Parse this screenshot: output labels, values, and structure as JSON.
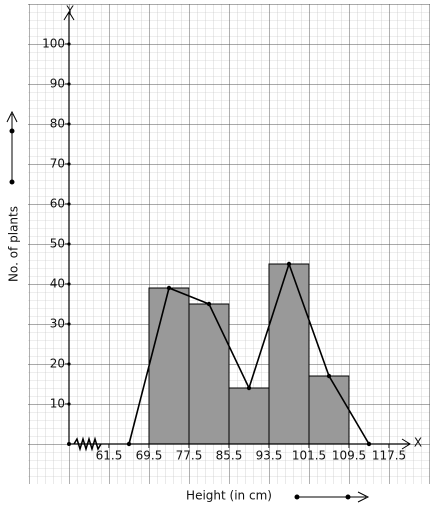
{
  "chart_data": {
    "type": "histogram",
    "xlabel": "Height (in cm)",
    "ylabel": "No. of plants",
    "x_axis_name": "X",
    "y_axis_name": "Y",
    "bins": [
      69.5,
      77.5,
      85.5,
      93.5,
      101.5,
      109.5
    ],
    "values": [
      39,
      35,
      14,
      45,
      17
    ],
    "color": "#999999",
    "polygon": {
      "x": [
        65.5,
        73.5,
        81.5,
        89.5,
        97.5,
        105.5,
        113.5
      ],
      "values": [
        0,
        39,
        35,
        14,
        45,
        17,
        0
      ],
      "color": "#000000"
    },
    "xlim": [
      53.5,
      121.5
    ],
    "xticks": [
      61.5,
      69.5,
      77.5,
      85.5,
      93.5,
      101.5,
      109.5,
      117.5
    ],
    "ylim": [
      0,
      110
    ],
    "yticks": [
      10,
      20,
      30,
      40,
      50,
      60,
      70,
      80,
      90,
      100
    ]
  }
}
